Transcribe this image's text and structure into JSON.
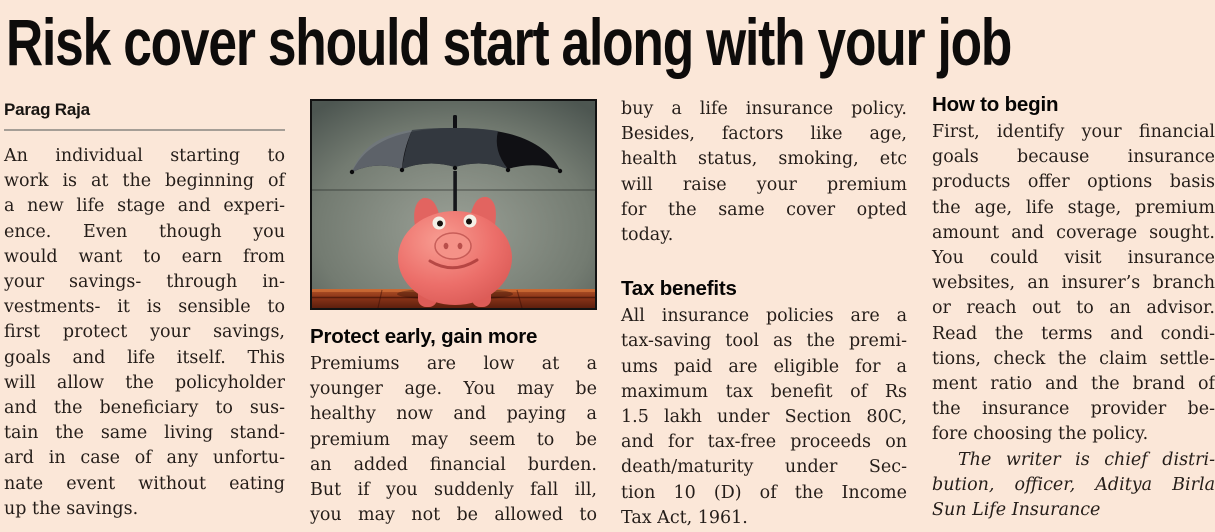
{
  "page": {
    "background": "#fbe7d8",
    "text_color": "#241d19",
    "rule_color": "#a59e96"
  },
  "article": {
    "title": "Risk cover should start along with your job",
    "byline": "Parag Raja",
    "column1": {
      "paragraph": {
        "continues": false,
        "lines": [
          "An individual starting to",
          "work is at the beginning of",
          "a new life stage and experi-",
          "ence. Even though you",
          "would want to earn from",
          "your savings- through in-",
          "vestments- it is sensible to",
          "first protect your savings,",
          "goals and life itself. This",
          "will allow the policyholder",
          "and the beneficiary to sus-",
          "tain the same living stand-",
          "ard in case of any unfortu-",
          "nate event without eating",
          "up the savings."
        ]
      }
    },
    "column2": {
      "heading": "Protect early, gain more",
      "paragraph": {
        "continues": true,
        "lines": [
          "Premiums are low at a",
          "younger age. You may be",
          "healthy now and paying a",
          "premium may seem to be",
          "an added financial burden.",
          "But if you suddenly fall ill,",
          "you may not be allowed to"
        ]
      }
    },
    "column3": {
      "paragraph_top": {
        "continues": false,
        "lines": [
          "buy a life insurance policy.",
          "Besides, factors like age,",
          "health status, smoking, etc",
          "will raise your premium",
          "for the same cover opted",
          "today."
        ]
      },
      "heading": "Tax benefits",
      "paragraph": {
        "continues": false,
        "lines": [
          "All insurance policies are a",
          "tax-saving tool as the premi-",
          "ums paid are eligible for a",
          "maximum tax benefit of Rs",
          "1.5 lakh under Section 80C,",
          "and for tax-free proceeds on",
          "death/maturity under Sec-",
          "tion 10 (D) of the Income",
          "Tax Act, 1961."
        ]
      }
    },
    "column4": {
      "heading": "How to begin",
      "paragraph": {
        "continues": false,
        "lines": [
          "First, identify your financial",
          "goals because insurance",
          "products offer options basis",
          "the age, life stage, premium",
          "amount and coverage sought.",
          "You could visit insurance",
          "websites, an insurer’s branch",
          "or reach out to an advisor.",
          "Read the terms and condi-",
          "tions, check the claim settle-",
          "ment ratio and the brand of",
          "the insurance provider be-",
          "fore choosing the policy."
        ]
      },
      "signature": {
        "continues": false,
        "indent_first": true,
        "lines": [
          "The writer is chief distri-",
          "bution, officer, Aditya Birla",
          "Sun Life Insurance"
        ]
      }
    }
  },
  "photo": {
    "description": "Pink piggy bank sheltered under a black umbrella on a wooden table",
    "colors": {
      "wall_center": "#9aa096",
      "wall_edge": "#4d5651",
      "umbrella": "#101014",
      "umbrella_sheen": "#71777e",
      "umbrella_panel": "#3a3f47",
      "pig": "#ec6f6a",
      "pig_highlight": "#f89d92",
      "pig_dark": "#d4534f",
      "snout": "#f59288",
      "table_light": "#b35427",
      "table_dark": "#5e1f0e"
    }
  }
}
